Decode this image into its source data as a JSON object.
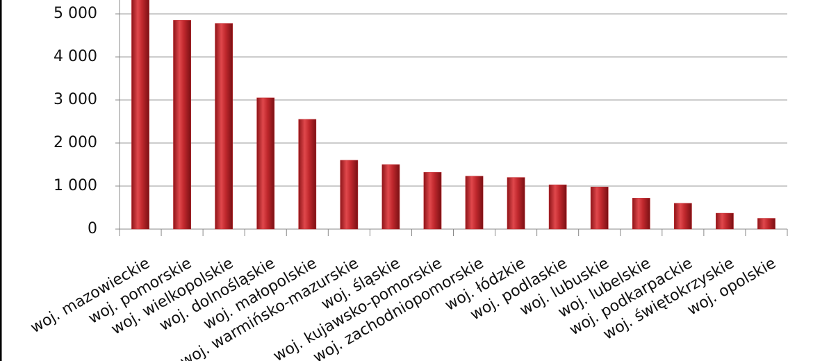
{
  "chart_data": {
    "type": "bar",
    "categories": [
      "woj. mazowieckie",
      "woj. pomorskie",
      "woj. wielkopolskie",
      "woj. dolnośląskie",
      "woj. małopolskie",
      "woj. warmińsko-mazurskie",
      "woj. śląskie",
      "woj. kujawsko-pomorskie",
      "woj. zachodniopomorskie",
      "woj. łódzkie",
      "woj. podlaskie",
      "woj. lubuskie",
      "woj. lubelskie",
      "woj. podkarpackie",
      "woj. świętokrzyskie",
      "woj. opolskie"
    ],
    "values": [
      5600,
      4850,
      4780,
      3050,
      2550,
      1600,
      1500,
      1320,
      1230,
      1200,
      1030,
      980,
      720,
      600,
      370,
      250
    ],
    "color": "#c0282d",
    "ylim": [
      0,
      6000
    ],
    "yticks": [
      0,
      {
        "value": 1000,
        "label": "1 000"
      },
      {
        "value": 2000,
        "label": "2 000"
      },
      {
        "value": 3000,
        "label": "3 000"
      },
      {
        "value": 4000,
        "label": "4 000"
      },
      {
        "value": 5000,
        "label": "5 000"
      }
    ],
    "grid": true
  }
}
